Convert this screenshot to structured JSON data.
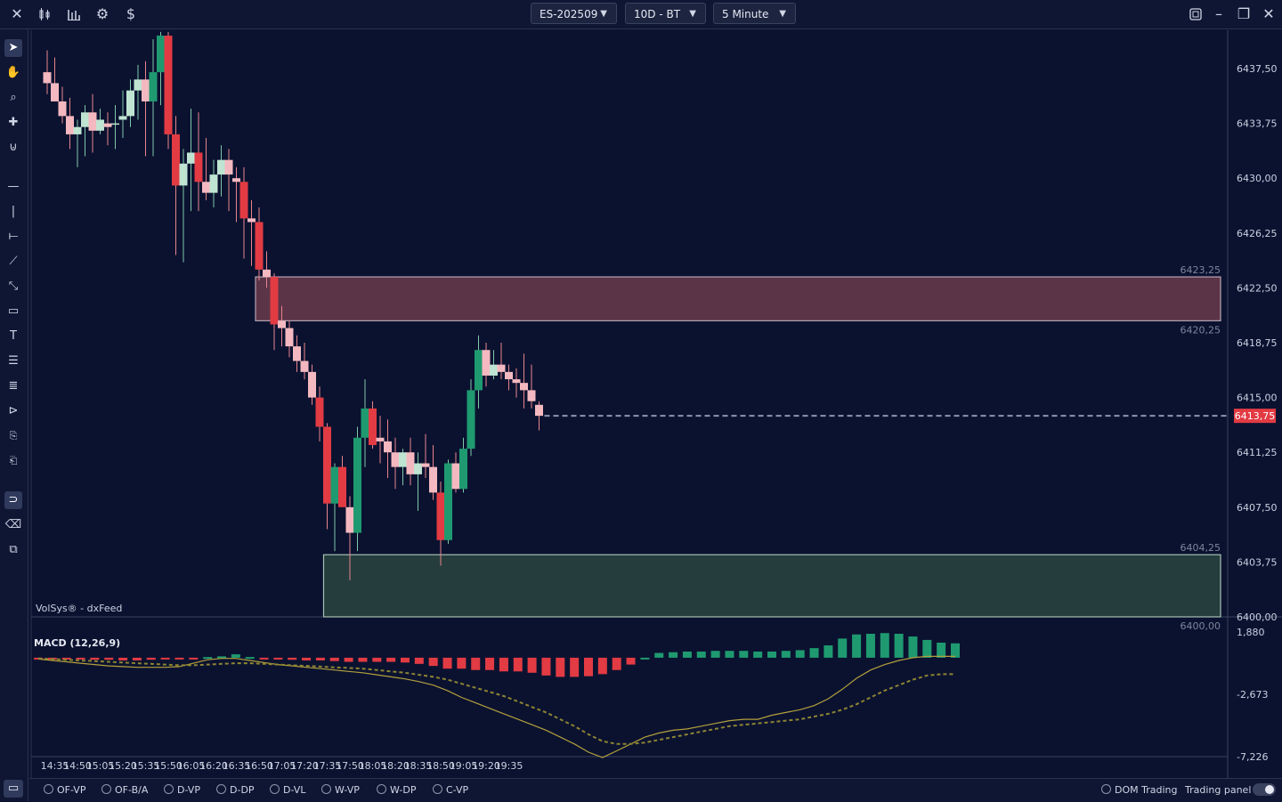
{
  "topbar": {
    "icons": [
      "close-icon",
      "candlestick-chart-icon",
      "bar-chart-icon",
      "settings-gear-icon",
      "dollar-icon"
    ],
    "dollar": "$",
    "symbol": "ES-202509",
    "range": "10D - BT",
    "interval": "5 Minute"
  },
  "watermark": "VolSys® - dxFeed",
  "price_axis": {
    "labels": [
      "6437,50",
      "6433,75",
      "6430,00",
      "6426,25",
      "6422,50",
      "6418,75",
      "6415,00",
      "6411,25",
      "6407,50",
      "6403,75",
      "6400,00"
    ],
    "current_price": "6413,75"
  },
  "zones": [
    {
      "name": "supply",
      "top_label": "6423,25",
      "bottom_label": "6420,25",
      "top": 6423.25,
      "bottom": 6420.25,
      "start_time": "16:50",
      "fill": "#5c3447",
      "border": "#b5a5b5"
    },
    {
      "name": "demand",
      "top_label": "6404,25",
      "bottom_label": "6400,00",
      "top": 6404.25,
      "bottom": 6400.0,
      "start_time": "17:35",
      "fill": "#253d3d",
      "border": "#a8c0b3"
    }
  ],
  "macd": {
    "label": "MACD (12,26,9)",
    "axis_labels": [
      "1,880",
      "-2,673",
      "-7,226"
    ],
    "histogram": [
      -0.1,
      -0.1,
      -0.1,
      -0.1,
      -0.15,
      -0.15,
      -0.2,
      -0.2,
      -0.15,
      -0.1,
      -0.05,
      -0.05,
      0.05,
      0.1,
      0.25,
      0.05,
      -0.1,
      -0.1,
      -0.15,
      -0.2,
      -0.2,
      -0.25,
      -0.3,
      -0.3,
      -0.3,
      -0.3,
      -0.35,
      -0.45,
      -0.6,
      -0.8,
      -0.8,
      -0.9,
      -0.9,
      -1.0,
      -1.0,
      -1.1,
      -1.3,
      -1.4,
      -1.4,
      -1.35,
      -1.2,
      -0.9,
      -0.5,
      0.0,
      0.35,
      0.4,
      0.45,
      0.45,
      0.5,
      0.5,
      0.5,
      0.45,
      0.45,
      0.5,
      0.55,
      0.7,
      0.9,
      1.4,
      1.7,
      1.75,
      1.8,
      1.75,
      1.55,
      1.3,
      1.1,
      1.05
    ],
    "macd_line": [
      -0.1,
      -0.2,
      -0.3,
      -0.4,
      -0.5,
      -0.6,
      -0.65,
      -0.7,
      -0.7,
      -0.7,
      -0.65,
      -0.4,
      -0.15,
      -0.05,
      -0.05,
      -0.2,
      -0.35,
      -0.5,
      -0.6,
      -0.7,
      -0.8,
      -0.9,
      -1.0,
      -1.1,
      -1.25,
      -1.4,
      -1.55,
      -1.75,
      -2.0,
      -2.4,
      -2.9,
      -3.3,
      -3.7,
      -4.1,
      -4.5,
      -4.9,
      -5.3,
      -5.8,
      -6.3,
      -6.9,
      -7.3,
      -6.8,
      -6.3,
      -5.8,
      -5.5,
      -5.3,
      -5.2,
      -5.0,
      -4.8,
      -4.6,
      -4.5,
      -4.5,
      -4.2,
      -4.0,
      -3.8,
      -3.5,
      -3.0,
      -2.3,
      -1.5,
      -0.9,
      -0.5,
      -0.2,
      0.0,
      0.1,
      0.1,
      0.1
    ],
    "signal_line": [
      -0.05,
      -0.1,
      -0.15,
      -0.2,
      -0.25,
      -0.3,
      -0.35,
      -0.4,
      -0.45,
      -0.5,
      -0.55,
      -0.55,
      -0.5,
      -0.45,
      -0.4,
      -0.4,
      -0.45,
      -0.5,
      -0.55,
      -0.6,
      -0.65,
      -0.7,
      -0.75,
      -0.8,
      -0.9,
      -1.0,
      -1.1,
      -1.25,
      -1.4,
      -1.6,
      -1.9,
      -2.2,
      -2.5,
      -2.8,
      -3.2,
      -3.6,
      -4.0,
      -4.5,
      -5.0,
      -5.6,
      -6.1,
      -6.3,
      -6.3,
      -6.2,
      -6.0,
      -5.8,
      -5.6,
      -5.4,
      -5.2,
      -5.0,
      -4.9,
      -4.8,
      -4.7,
      -4.6,
      -4.5,
      -4.3,
      -4.1,
      -3.8,
      -3.4,
      -2.9,
      -2.4,
      -2.0,
      -1.6,
      -1.3,
      -1.2,
      -1.2
    ]
  },
  "time_axis": [
    "14:35",
    "14:50",
    "15:05",
    "15:20",
    "15:35",
    "15:50",
    "16:05",
    "16:20",
    "16:35",
    "16:50",
    "17:05",
    "17:20",
    "17:35",
    "17:50",
    "18:05",
    "18:20",
    "18:35",
    "18:50",
    "19:05",
    "19:20",
    "19:35"
  ],
  "bottom": {
    "panels": [
      "OF-VP",
      "OF-B/A",
      "D-VP",
      "D-DP",
      "D-VL",
      "W-VP",
      "W-DP",
      "C-VP"
    ],
    "dom_trading": "DOM Trading",
    "trading_panel": "Trading panel"
  },
  "toolbar": {
    "tools": [
      "cursor-arrow-icon",
      "hand-pan-icon",
      "zoom-icon",
      "crosshair-icon",
      "magnet-icon",
      "horizontal-line-icon",
      "vertical-line-icon",
      "horizontal-ray-icon",
      "trend-line-icon",
      "path-icon",
      "rectangle-icon",
      "text-icon",
      "fib-levels-icon",
      "lines-icon",
      "arrow-marker-icon",
      "price-marker-icon",
      "scale-marker-icon",
      "snap-magnet-icon",
      "eraser-icon",
      "layers-icon"
    ]
  },
  "colors": {
    "background": "#0b1230",
    "bull": "#1f9a70",
    "bull_light": "#bfe4d2",
    "bear": "#e23b43",
    "bear_light": "#f4b9c0",
    "current_price": "#e23b43",
    "macd_positive": "#1f9a70",
    "macd_negative": "#e23b43",
    "macd_line": "#b3a03c",
    "signal_line": "#8d8432"
  },
  "chart_data": {
    "type": "candlestick",
    "start_time": "14:30",
    "interval_minutes": 5,
    "y_axis": [
      6400,
      6440
    ],
    "last_price": 6413.75,
    "ohlc": [
      [
        6437.25,
        6438.75,
        6435.75,
        6436.5
      ],
      [
        6436.5,
        6438.25,
        6435.5,
        6435.25
      ],
      [
        6435.25,
        6436.25,
        6433.75,
        6434.25
      ],
      [
        6434.25,
        6435.5,
        6432.0,
        6433.0
      ],
      [
        6433.0,
        6434.0,
        6430.75,
        6433.5
      ],
      [
        6433.5,
        6435.0,
        6431.5,
        6434.5
      ],
      [
        6434.5,
        6435.75,
        6431.75,
        6433.25
      ],
      [
        6433.25,
        6434.75,
        6433.0,
        6434.0
      ],
      [
        6433.75,
        6434.5,
        6432.25,
        6433.5
      ],
      [
        6433.75,
        6435.0,
        6432.0,
        6433.75
      ],
      [
        6434.0,
        6436.0,
        6432.75,
        6434.25
      ],
      [
        6434.25,
        6436.75,
        6433.5,
        6436.0
      ],
      [
        6436.0,
        6437.75,
        6434.0,
        6436.75
      ],
      [
        6436.75,
        6438.0,
        6431.5,
        6435.25
      ],
      [
        6435.25,
        6439.5,
        6431.5,
        6437.25
      ],
      [
        6437.25,
        6440.0,
        6435.0,
        6439.75
      ],
      [
        6439.75,
        6440.0,
        6432.0,
        6433.0
      ],
      [
        6433.0,
        6434.25,
        6424.75,
        6429.5
      ],
      [
        6429.5,
        6432.0,
        6424.25,
        6431.0
      ],
      [
        6431.0,
        6434.75,
        6427.75,
        6431.75
      ],
      [
        6431.75,
        6434.5,
        6427.75,
        6429.75
      ],
      [
        6429.75,
        6432.75,
        6428.5,
        6429.0
      ],
      [
        6429.0,
        6431.25,
        6428.0,
        6430.25
      ],
      [
        6430.25,
        6432.25,
        6428.75,
        6431.25
      ],
      [
        6431.25,
        6432.0,
        6427.75,
        6430.25
      ],
      [
        6430.0,
        6430.75,
        6427.0,
        6429.75
      ],
      [
        6429.75,
        6430.75,
        6424.5,
        6427.25
      ],
      [
        6427.25,
        6428.5,
        6424.0,
        6427.0
      ],
      [
        6427.0,
        6428.0,
        6423.0,
        6423.75
      ],
      [
        6423.75,
        6425.0,
        6422.5,
        6423.25
      ],
      [
        6423.25,
        6423.5,
        6418.25,
        6420.0
      ],
      [
        6420.25,
        6421.25,
        6418.5,
        6419.75
      ],
      [
        6419.75,
        6420.25,
        6417.75,
        6418.5
      ],
      [
        6418.5,
        6419.25,
        6416.75,
        6417.5
      ],
      [
        6417.5,
        6418.75,
        6416.25,
        6416.75
      ],
      [
        6416.75,
        6417.25,
        6414.5,
        6415.0
      ],
      [
        6415.0,
        6415.75,
        6412.0,
        6413.0
      ],
      [
        6413.0,
        6413.25,
        6406.0,
        6407.75
      ],
      [
        6407.75,
        6410.5,
        6404.5,
        6410.25
      ],
      [
        6410.25,
        6411.0,
        6407.5,
        6407.5
      ],
      [
        6407.5,
        6408.25,
        6402.5,
        6405.75
      ],
      [
        6405.75,
        6413.0,
        6404.5,
        6412.25
      ],
      [
        6412.25,
        6416.25,
        6410.25,
        6414.25
      ],
      [
        6414.25,
        6414.75,
        6411.5,
        6411.75
      ],
      [
        6412.25,
        6413.75,
        6410.5,
        6412.0
      ],
      [
        6412.0,
        6413.5,
        6409.5,
        6411.25
      ],
      [
        6411.25,
        6412.25,
        6408.75,
        6410.25
      ],
      [
        6410.25,
        6411.5,
        6409.0,
        6411.25
      ],
      [
        6411.25,
        6412.25,
        6409.0,
        6409.75
      ],
      [
        6409.75,
        6411.25,
        6407.25,
        6410.5
      ],
      [
        6410.5,
        6412.5,
        6409.5,
        6410.25
      ],
      [
        6410.25,
        6411.75,
        6408.0,
        6408.5
      ],
      [
        6408.5,
        6409.25,
        6403.5,
        6405.25
      ],
      [
        6405.25,
        6410.75,
        6405.0,
        6410.5
      ],
      [
        6410.5,
        6411.25,
        6408.5,
        6408.75
      ],
      [
        6408.75,
        6412.25,
        6408.5,
        6411.5
      ],
      [
        6411.5,
        6416.25,
        6411.0,
        6415.5
      ],
      [
        6415.5,
        6419.25,
        6414.25,
        6418.25
      ],
      [
        6418.25,
        6418.75,
        6415.75,
        6416.5
      ],
      [
        6416.5,
        6418.25,
        6416.25,
        6417.25
      ],
      [
        6417.25,
        6418.75,
        6416.25,
        6416.75
      ],
      [
        6416.75,
        6417.25,
        6415.5,
        6416.25
      ],
      [
        6416.25,
        6417.0,
        6415.0,
        6416.0
      ],
      [
        6416.0,
        6418.0,
        6414.25,
        6415.5
      ],
      [
        6415.5,
        6417.25,
        6414.25,
        6414.75
      ],
      [
        6414.5,
        6414.75,
        6412.75,
        6413.75
      ]
    ]
  }
}
